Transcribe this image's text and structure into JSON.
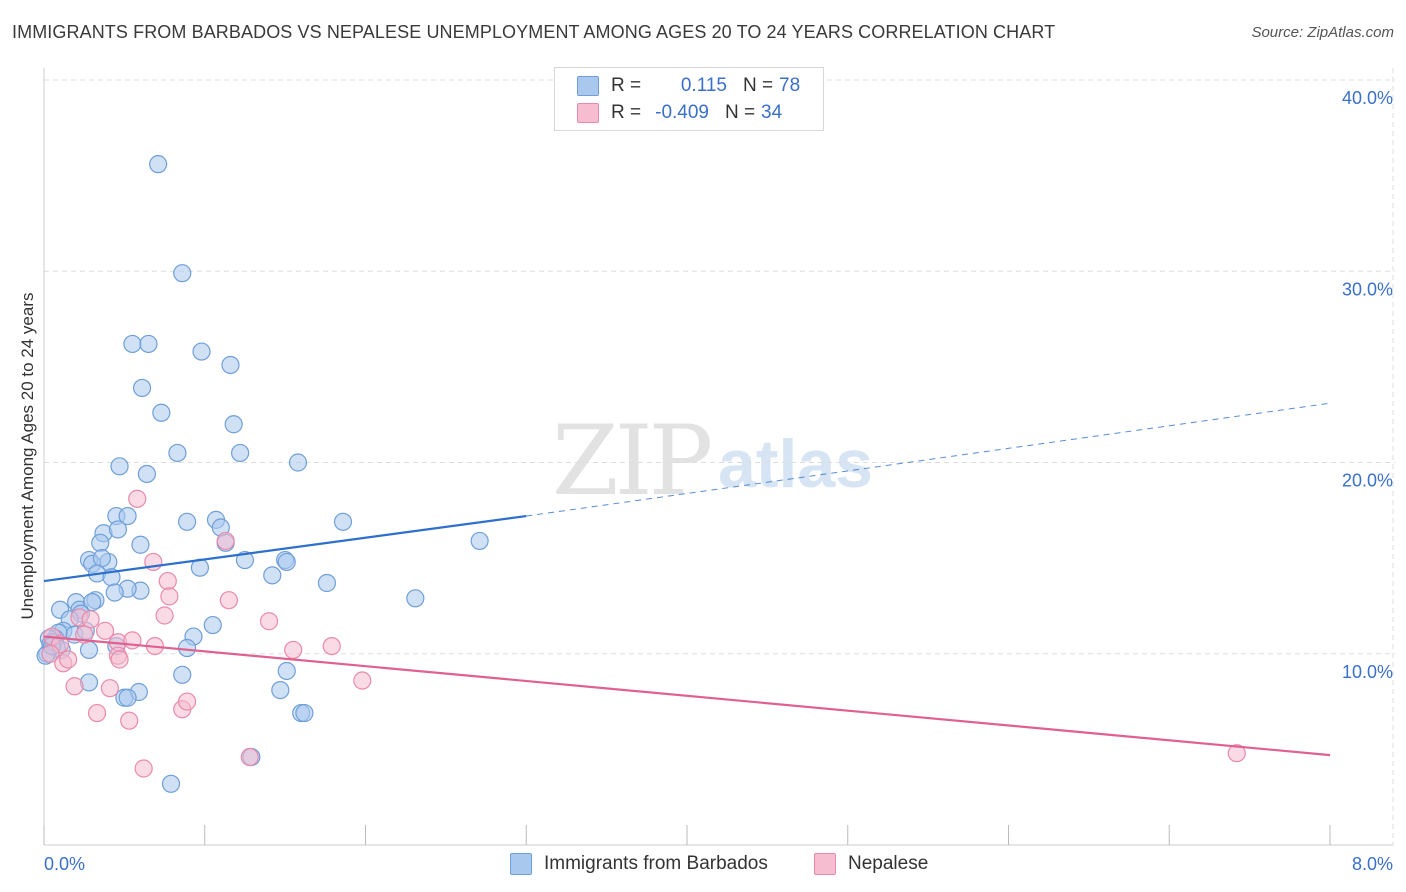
{
  "title": "IMMIGRANTS FROM BARBADOS VS NEPALESE UNEMPLOYMENT AMONG AGES 20 TO 24 YEARS CORRELATION CHART",
  "source": "Source: ZipAtlas.com",
  "watermark": {
    "zip": "ZIP",
    "atlas": "atlas"
  },
  "legend": {
    "rows": [
      {
        "r_label": "R =",
        "r_value": "0.115",
        "n_label": "N =",
        "n_value": "78"
      },
      {
        "r_label": "R =",
        "r_value": "-0.409",
        "n_label": "N =",
        "n_value": "34"
      }
    ]
  },
  "colors": {
    "blue_fill": "#aac8ee",
    "blue_stroke": "#6f9fd8",
    "blue_line": "#2d6fcc",
    "pink_fill": "#f6bcd0",
    "pink_stroke": "#e98aab",
    "pink_line": "#e06090",
    "axis_text": "#3a70c9",
    "grid": "#dddddd"
  },
  "chart_data": {
    "type": "scatter",
    "title": "IMMIGRANTS FROM BARBADOS VS NEPALESE UNEMPLOYMENT AMONG AGES 20 TO 24 YEARS CORRELATION CHART",
    "xlabel": "",
    "ylabel": "Unemployment Among Ages 20 to 24 years",
    "xlim": [
      0,
      8
    ],
    "ylim": [
      0,
      40
    ],
    "x_tick_labels": [
      "0.0%",
      "8.0%"
    ],
    "y_ticks": [
      10,
      20,
      30,
      40
    ],
    "y_tick_labels": [
      "10.0%",
      "20.0%",
      "30.0%",
      "40.0%"
    ],
    "grid": true,
    "series": [
      {
        "name": "Immigrants from Barbados",
        "color": "blue",
        "trend": {
          "x0": 0.0,
          "y0": 13.8,
          "x1": 3.0,
          "y1": 17.2,
          "dash_x1": 8.0,
          "dash_y1": 23.1
        },
        "points": [
          [
            0.71,
            35.6
          ],
          [
            0.86,
            29.9
          ],
          [
            0.55,
            26.2
          ],
          [
            0.65,
            26.2
          ],
          [
            0.98,
            25.8
          ],
          [
            1.16,
            25.1
          ],
          [
            0.61,
            23.9
          ],
          [
            0.73,
            22.6
          ],
          [
            1.18,
            22.0
          ],
          [
            0.47,
            19.8
          ],
          [
            0.83,
            20.5
          ],
          [
            1.22,
            20.5
          ],
          [
            1.58,
            20.0
          ],
          [
            0.64,
            19.4
          ],
          [
            0.45,
            17.2
          ],
          [
            0.52,
            17.2
          ],
          [
            0.89,
            16.9
          ],
          [
            1.07,
            17.0
          ],
          [
            1.1,
            16.6
          ],
          [
            1.86,
            16.9
          ],
          [
            0.37,
            16.3
          ],
          [
            0.46,
            16.5
          ],
          [
            0.35,
            15.8
          ],
          [
            0.6,
            15.7
          ],
          [
            1.13,
            15.8
          ],
          [
            2.71,
            15.9
          ],
          [
            0.28,
            14.9
          ],
          [
            0.4,
            14.8
          ],
          [
            0.3,
            14.7
          ],
          [
            0.36,
            15.0
          ],
          [
            1.25,
            14.9
          ],
          [
            1.5,
            14.9
          ],
          [
            1.51,
            14.8
          ],
          [
            0.33,
            14.2
          ],
          [
            0.42,
            14.0
          ],
          [
            0.97,
            14.5
          ],
          [
            1.42,
            14.1
          ],
          [
            0.6,
            13.3
          ],
          [
            0.52,
            13.4
          ],
          [
            1.76,
            13.7
          ],
          [
            0.44,
            13.2
          ],
          [
            0.32,
            12.8
          ],
          [
            2.31,
            12.9
          ],
          [
            0.2,
            12.7
          ],
          [
            0.22,
            12.3
          ],
          [
            0.1,
            12.3
          ],
          [
            0.3,
            12.7
          ],
          [
            0.23,
            12.1
          ],
          [
            1.05,
            11.5
          ],
          [
            0.16,
            11.8
          ],
          [
            0.12,
            11.2
          ],
          [
            0.19,
            11.0
          ],
          [
            0.26,
            11.2
          ],
          [
            0.09,
            11.1
          ],
          [
            0.07,
            10.8
          ],
          [
            0.03,
            10.8
          ],
          [
            0.04,
            10.5
          ],
          [
            0.06,
            10.6
          ],
          [
            0.11,
            10.2
          ],
          [
            0.08,
            10.3
          ],
          [
            0.02,
            10.0
          ],
          [
            0.28,
            10.2
          ],
          [
            0.45,
            10.4
          ],
          [
            0.93,
            10.9
          ],
          [
            0.89,
            10.3
          ],
          [
            0.01,
            9.9
          ],
          [
            1.51,
            9.1
          ],
          [
            0.86,
            8.9
          ],
          [
            0.28,
            8.5
          ],
          [
            0.59,
            8.0
          ],
          [
            0.5,
            7.7
          ],
          [
            0.52,
            7.7
          ],
          [
            1.47,
            8.1
          ],
          [
            1.6,
            6.9
          ],
          [
            1.62,
            6.9
          ],
          [
            1.29,
            4.6
          ],
          [
            0.79,
            3.2
          ],
          [
            0.05,
            10.4
          ]
        ]
      },
      {
        "name": "Nepalese",
        "color": "pink",
        "trend": {
          "x0": 0.0,
          "y0": 10.9,
          "x1": 8.0,
          "y1": 4.7
        },
        "points": [
          [
            0.58,
            18.1
          ],
          [
            1.13,
            15.9
          ],
          [
            0.68,
            14.8
          ],
          [
            0.77,
            13.8
          ],
          [
            0.78,
            13.0
          ],
          [
            1.15,
            12.8
          ],
          [
            0.75,
            12.0
          ],
          [
            1.4,
            11.7
          ],
          [
            0.22,
            11.9
          ],
          [
            0.29,
            11.8
          ],
          [
            0.38,
            11.2
          ],
          [
            0.25,
            11.0
          ],
          [
            0.46,
            10.6
          ],
          [
            0.55,
            10.7
          ],
          [
            0.69,
            10.4
          ],
          [
            1.79,
            10.4
          ],
          [
            0.05,
            10.9
          ],
          [
            0.1,
            10.5
          ],
          [
            0.04,
            10.0
          ],
          [
            1.55,
            10.2
          ],
          [
            0.12,
            9.5
          ],
          [
            0.15,
            9.7
          ],
          [
            0.46,
            9.9
          ],
          [
            0.47,
            9.7
          ],
          [
            0.19,
            8.3
          ],
          [
            1.98,
            8.6
          ],
          [
            0.41,
            8.2
          ],
          [
            0.86,
            7.1
          ],
          [
            0.89,
            7.5
          ],
          [
            0.33,
            6.9
          ],
          [
            0.53,
            6.5
          ],
          [
            1.28,
            4.6
          ],
          [
            0.62,
            4.0
          ],
          [
            7.42,
            4.8
          ]
        ]
      }
    ]
  },
  "bottom_legend": {
    "items": [
      {
        "label": "Immigrants from Barbados"
      },
      {
        "label": "Nepalese"
      }
    ]
  }
}
